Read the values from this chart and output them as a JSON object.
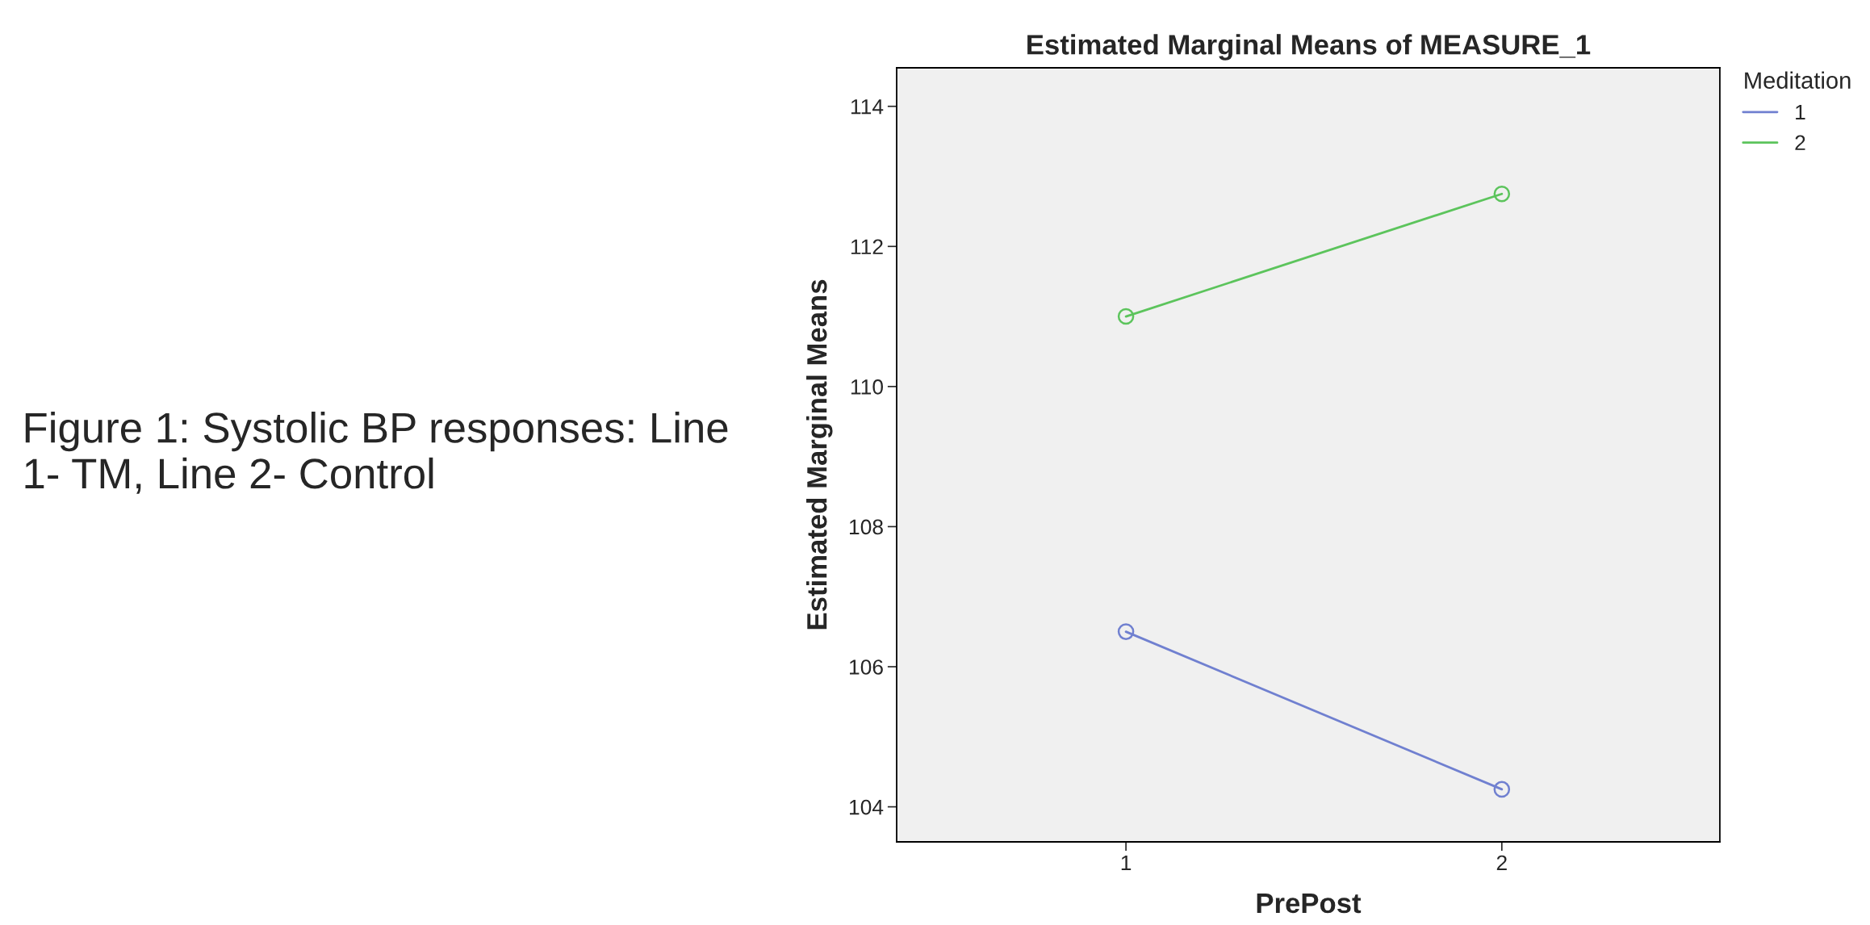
{
  "chart_data": {
    "type": "line",
    "title": "Estimated Marginal Means of MEASURE_1",
    "xlabel": "PrePost",
    "ylabel": "Estimated Marginal Means",
    "legend_title": "Meditation",
    "annotations": [
      "Figure 1: Systolic BP responses: Line 1- TM, Line 2- Control"
    ],
    "categories": [
      "1",
      "2"
    ],
    "series": [
      {
        "name": "1",
        "color": "#7080d0",
        "values": [
          106.5,
          104.25
        ]
      },
      {
        "name": "2",
        "color": "#5cc45c",
        "values": [
          111.0,
          112.75
        ]
      }
    ],
    "ylim": [
      103.5,
      114.55
    ],
    "yticks": [
      104,
      106,
      108,
      110,
      112,
      114
    ],
    "grid": false,
    "legend": "top right",
    "marker": "circle",
    "line_style": "solid"
  }
}
